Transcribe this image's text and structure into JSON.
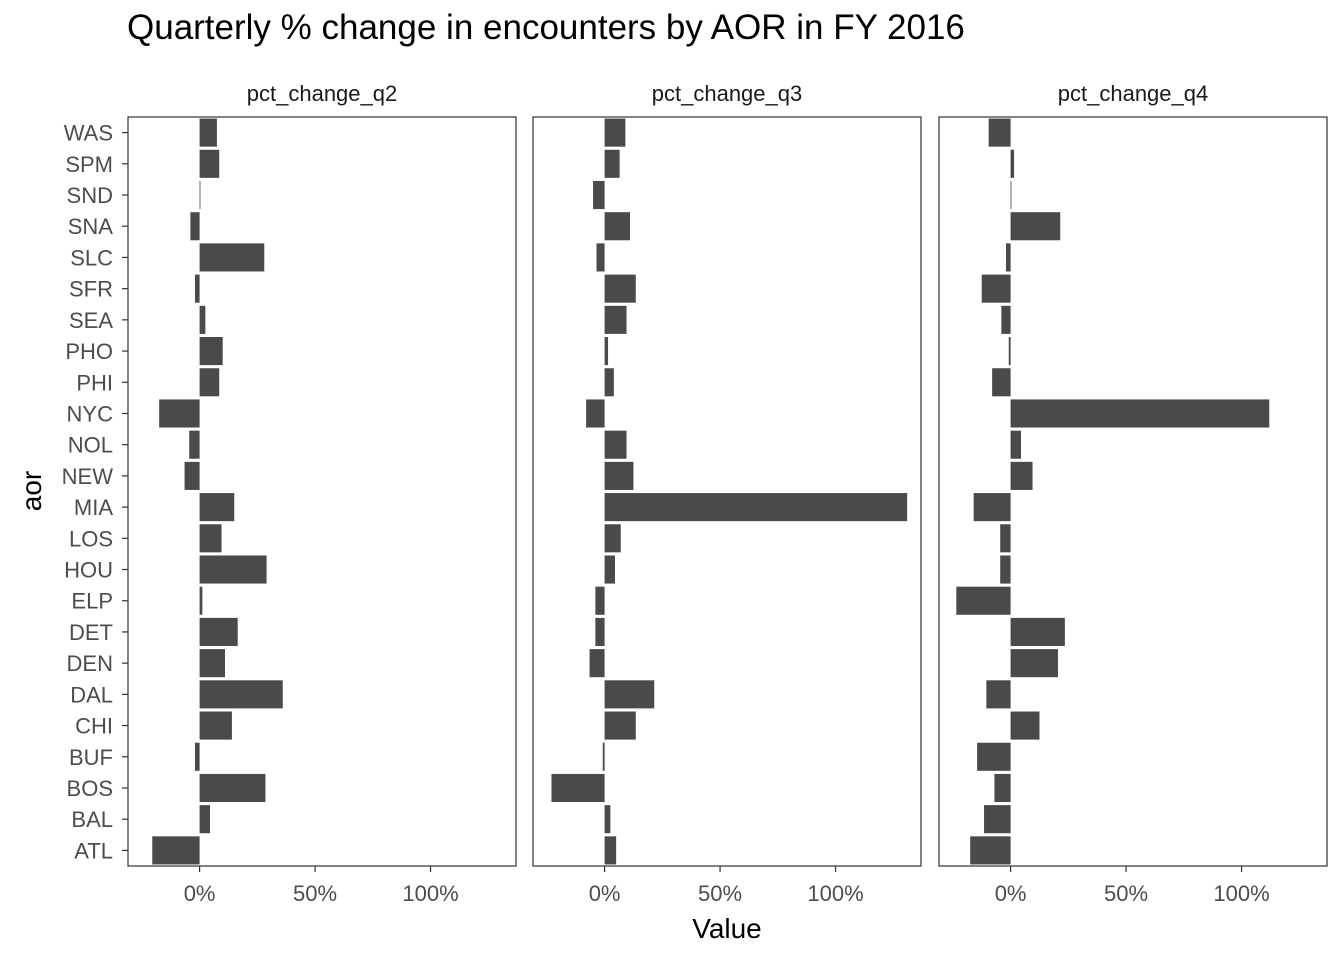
{
  "chart_data": {
    "type": "bar",
    "orientation": "horizontal",
    "title": "Quarterly % change in encounters by AOR in FY 2016",
    "xlabel": "Value",
    "ylabel": "aor",
    "categories": [
      "ATL",
      "BAL",
      "BOS",
      "BUF",
      "CHI",
      "DAL",
      "DEN",
      "DET",
      "ELP",
      "HOU",
      "LOS",
      "MIA",
      "NEW",
      "NOL",
      "NYC",
      "PHI",
      "PHO",
      "SEA",
      "SFR",
      "SLC",
      "SNA",
      "SND",
      "SPM",
      "WAS"
    ],
    "xticks": [
      "0%",
      "50%",
      "100%"
    ],
    "xtick_values": [
      0,
      50,
      100
    ],
    "xlim": [
      -31,
      137
    ],
    "grid": false,
    "color": "#4a4a4a",
    "facets": [
      {
        "name": "pct_change_q2",
        "values": [
          -20.5,
          4.5,
          28.5,
          -2,
          14,
          36,
          11,
          16.5,
          1.2,
          29,
          9.5,
          15,
          -6.5,
          -4.5,
          -17.5,
          8.5,
          10,
          2.5,
          -2,
          28,
          -4,
          0,
          8.5,
          7.5
        ]
      },
      {
        "name": "pct_change_q3",
        "values": [
          5,
          2.5,
          -23,
          -0.8,
          13.5,
          21.5,
          -6.5,
          -4,
          -4,
          4.5,
          7,
          131,
          12.5,
          9.5,
          -8,
          4,
          1.5,
          9.5,
          13.5,
          -3.5,
          11,
          -5,
          6.5,
          9
        ]
      },
      {
        "name": "pct_change_q4",
        "values": [
          -17.5,
          -11.5,
          -7,
          -14.5,
          12.5,
          -10.5,
          20.5,
          23.5,
          -23.5,
          -4.5,
          -4.5,
          -16,
          9.5,
          4.5,
          112,
          -8,
          -0.8,
          -4,
          -12.5,
          -2,
          21.5,
          0.3,
          1.5,
          -9.5
        ]
      }
    ]
  }
}
